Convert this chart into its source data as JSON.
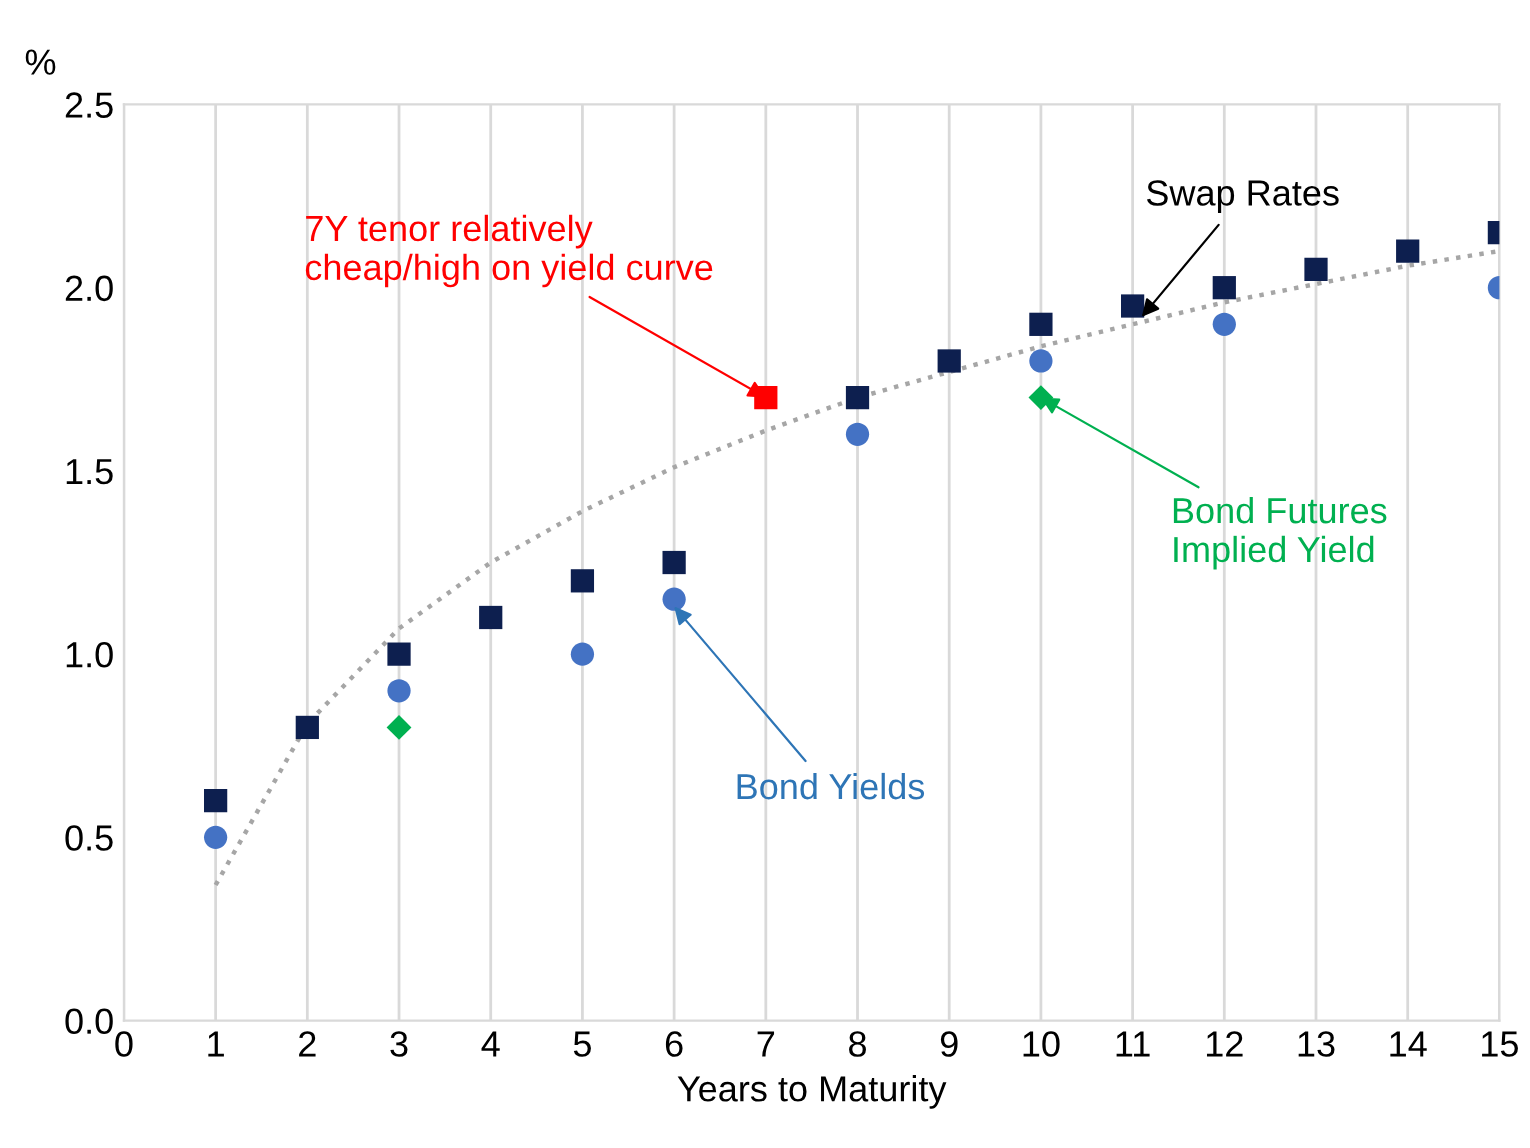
{
  "chart_data": {
    "type": "scatter",
    "xlabel": "Years to Maturity",
    "ylabel": "%",
    "xlim": [
      0,
      15
    ],
    "xticks": [
      0,
      1,
      2,
      3,
      4,
      5,
      6,
      7,
      8,
      9,
      10,
      11,
      12,
      13,
      14,
      15
    ],
    "ylim": [
      0,
      2.5
    ],
    "yticks": [
      {
        "value": 0,
        "label": "0.0"
      },
      {
        "value": 0.5,
        "label": "0.5"
      },
      {
        "value": 1,
        "label": "1.0"
      },
      {
        "value": 1.5,
        "label": "1.5"
      },
      {
        "value": 2,
        "label": "2.0"
      },
      {
        "value": 2.5,
        "label": "2.5"
      }
    ],
    "grid": "x",
    "series": [
      {
        "type": "line",
        "line_style": "dotted",
        "marker": "none",
        "color": "#a6a6a6",
        "x": [
          1,
          2,
          3,
          4,
          5,
          6,
          7,
          8,
          9,
          10,
          11,
          12,
          13,
          14,
          15
        ],
        "values": [
          0.37,
          0.81,
          1.07,
          1.25,
          1.39,
          1.51,
          1.61,
          1.7,
          1.77,
          1.84,
          1.9,
          1.96,
          2.01,
          2.06,
          2.1
        ]
      },
      {
        "marker": "circle",
        "color": "#4472c4",
        "x": [
          1,
          3,
          5,
          6,
          8,
          10,
          12,
          15
        ],
        "values": [
          0.5,
          0.9,
          1.0,
          1.15,
          1.6,
          1.8,
          1.9,
          2.0
        ]
      },
      {
        "marker": "square",
        "colors": [
          "#0d1f4f",
          "#0d1f4f",
          "#0d1f4f",
          "#0d1f4f",
          "#0d1f4f",
          "#0d1f4f",
          "#ff0000",
          "#0d1f4f",
          "#0d1f4f",
          "#0d1f4f",
          "#0d1f4f",
          "#0d1f4f",
          "#0d1f4f",
          "#0d1f4f",
          "#0d1f4f"
        ],
        "x": [
          1,
          2,
          3,
          4,
          5,
          6,
          7,
          8,
          9,
          10,
          11,
          12,
          13,
          14,
          15
        ],
        "values": [
          0.6,
          0.8,
          1.0,
          1.1,
          1.2,
          1.25,
          1.7,
          1.7,
          1.8,
          1.9,
          1.95,
          2.0,
          2.05,
          2.1,
          2.15
        ]
      },
      {
        "marker": "diamond",
        "color": "#00b050",
        "x": [
          3,
          10
        ],
        "values": [
          0.8,
          1.7
        ]
      }
    ],
    "annotations": [
      {
        "text": "7Y tenor relatively\ncheap/high on yield curve",
        "x": 7,
        "y": 1.7
      },
      {
        "text": "Swap Rates",
        "x": 11.1,
        "y": 1.92
      },
      {
        "text": "Bond Futures\nImplied Yield",
        "x": 10,
        "y": 1.7
      },
      {
        "text": "Bond Yields",
        "x": 6,
        "y": 1.13
      }
    ]
  }
}
